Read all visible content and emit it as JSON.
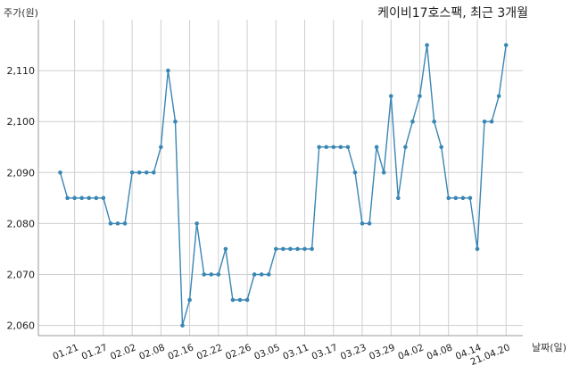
{
  "chart_data": {
    "type": "line",
    "title": "케이비17호스팩, 최근 3개월",
    "ylabel": "주가(원)",
    "xlabel": "날짜(일)",
    "ylim": [
      2058,
      2120
    ],
    "y_ticks": [
      2060,
      2070,
      2080,
      2090,
      2100,
      2110
    ],
    "y_tick_labels": [
      "2,060",
      "2,070",
      "2,080",
      "2,090",
      "2,100",
      "2,110"
    ],
    "x_tick_labels": [
      "01.21",
      "01.27",
      "02.02",
      "02.08",
      "02.16",
      "02.22",
      "02.26",
      "03.05",
      "03.11",
      "03.17",
      "03.23",
      "03.29",
      "04.02",
      "04.08",
      "04.14",
      "21.04.20"
    ],
    "x_tick_indices": [
      2,
      6,
      10,
      14,
      18,
      22,
      26,
      30,
      34,
      38,
      42,
      46,
      50,
      54,
      58,
      62
    ],
    "grid": true,
    "color": "#3a86b4",
    "values": [
      2090,
      2085,
      2085,
      2085,
      2085,
      2085,
      2085,
      2080,
      2080,
      2080,
      2090,
      2090,
      2090,
      2090,
      2095,
      2110,
      2100,
      2060,
      2065,
      2080,
      2070,
      2070,
      2070,
      2075,
      2065,
      2065,
      2065,
      2070,
      2070,
      2070,
      2075,
      2075,
      2075,
      2075,
      2075,
      2075,
      2095,
      2095,
      2095,
      2095,
      2095,
      2090,
      2080,
      2080,
      2095,
      2090,
      2105,
      2085,
      2095,
      2100,
      2105,
      2115,
      2100,
      2095,
      2085,
      2085,
      2085,
      2085,
      2075,
      2100,
      2100,
      2105,
      2115
    ]
  }
}
